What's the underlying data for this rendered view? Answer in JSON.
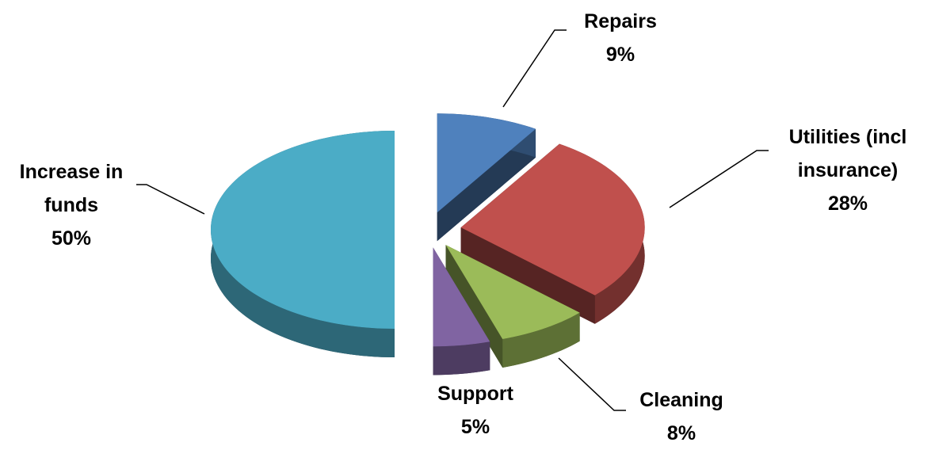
{
  "chart_data": {
    "type": "pie",
    "categories": [
      "Repairs",
      "Utilities (incl insurance)",
      "Cleaning",
      "Support",
      "Increase in funds"
    ],
    "values": [
      9,
      28,
      8,
      5,
      50
    ],
    "value_labels": [
      "9%",
      "28%",
      "8%",
      "5%",
      "50%"
    ],
    "colors": [
      "#4f81bd",
      "#c0504d",
      "#9bbb59",
      "#8064a2",
      "#4bacc6"
    ]
  }
}
